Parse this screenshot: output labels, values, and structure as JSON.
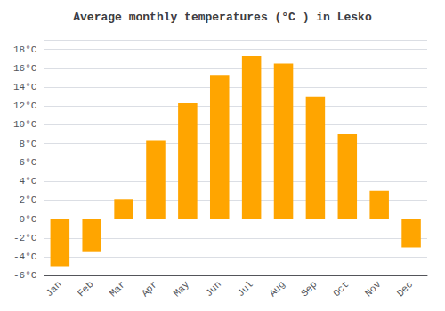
{
  "chart_data": {
    "type": "bar",
    "title": "Average monthly temperatures (°C ) in Lesko",
    "categories": [
      "Jan",
      "Feb",
      "Mar",
      "Apr",
      "May",
      "Jun",
      "Jul",
      "Aug",
      "Sep",
      "Oct",
      "Nov",
      "Dec"
    ],
    "values": [
      -5.0,
      -3.5,
      2.1,
      8.3,
      12.3,
      15.3,
      17.3,
      16.5,
      13.0,
      9.0,
      3.0,
      -3.0
    ],
    "color": "#FFA500",
    "ylim": [
      -6,
      19
    ],
    "yticks": [
      {
        "value": -6,
        "label": "-6°C"
      },
      {
        "value": -4,
        "label": "-4°C"
      },
      {
        "value": -2,
        "label": "-2°C"
      },
      {
        "value": 0,
        "label": "0°C"
      },
      {
        "value": 2,
        "label": "2°C"
      },
      {
        "value": 4,
        "label": "4°C"
      },
      {
        "value": 6,
        "label": "6°C"
      },
      {
        "value": 8,
        "label": "8°C"
      },
      {
        "value": 10,
        "label": "10°C"
      },
      {
        "value": 12,
        "label": "12°C"
      },
      {
        "value": 14,
        "label": "14°C"
      },
      {
        "value": 16,
        "label": "16°C"
      },
      {
        "value": 18,
        "label": "18°C"
      }
    ],
    "grid": true
  }
}
